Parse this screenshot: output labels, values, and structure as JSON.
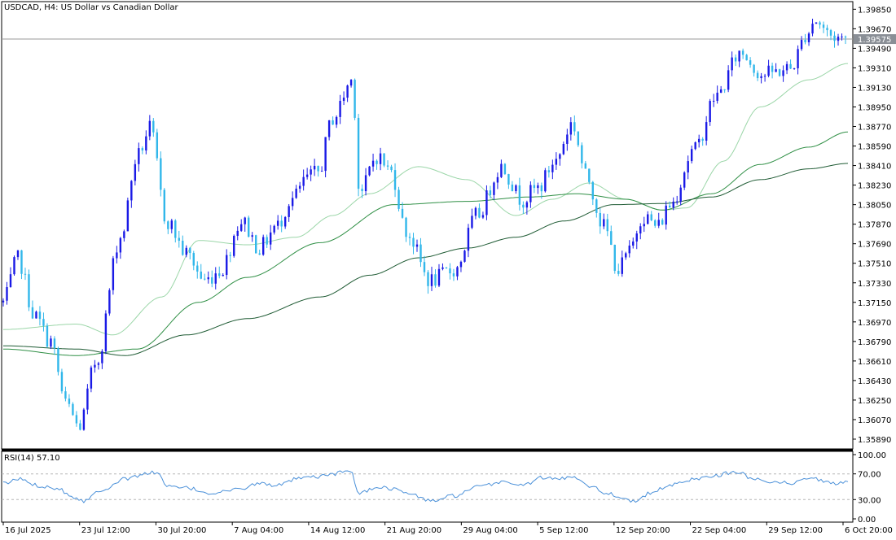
{
  "header": {
    "symbol_title": "USDCAD, H4:  US Dollar vs Canadian Dollar"
  },
  "indicator": {
    "rsi_title": "RSI(14) 57.10",
    "rsi_ticks": [
      "100.00",
      "70.00",
      "30.00",
      "0.00"
    ]
  },
  "colors": {
    "bull_candle": "#1a1ae6",
    "bear_candle": "#31b7ea",
    "ma_fast": "#9bd6a8",
    "ma_mid": "#2f8f45",
    "ma_slow": "#1f5b34",
    "rsi_line": "#4a90d9",
    "price_tag_bg": "#8a8f96"
  },
  "chart_data": [
    {
      "type": "candlestick",
      "title": "USDCAD, H4:  US Dollar vs Canadian Dollar",
      "ylim": [
        1.358,
        1.3992
      ],
      "current_price": "1.39575",
      "y_ticks": [
        "1.39850",
        "1.39670",
        "1.39490",
        "1.39310",
        "1.39130",
        "1.38950",
        "1.38770",
        "1.38590",
        "1.38410",
        "1.38230",
        "1.38050",
        "1.37870",
        "1.37690",
        "1.37510",
        "1.37330",
        "1.37150",
        "1.36970",
        "1.36790",
        "1.36610",
        "1.36430",
        "1.36250",
        "1.36070",
        "1.35890"
      ],
      "x_ticks": [
        "16 Jul 2025",
        "23 Jul 12:00",
        "30 Jul 20:00",
        "7 Aug 04:00",
        "14 Aug 12:00",
        "21 Aug 20:00",
        "29 Aug 04:00",
        "5 Sep 12:00",
        "12 Sep 20:00",
        "22 Sep 04:00",
        "29 Sep 12:00",
        "6 Oct 20:00"
      ],
      "series_close_anchors": [
        [
          0,
          1.3715
        ],
        [
          12,
          1.3755
        ],
        [
          26,
          1.3702
        ],
        [
          38,
          1.368
        ],
        [
          52,
          1.362
        ],
        [
          62,
          1.36
        ],
        [
          76,
          1.366
        ],
        [
          96,
          1.3775
        ],
        [
          110,
          1.385
        ],
        [
          120,
          1.3875
        ],
        [
          134,
          1.379
        ],
        [
          150,
          1.376
        ],
        [
          165,
          1.3735
        ],
        [
          178,
          1.3745
        ],
        [
          195,
          1.379
        ],
        [
          210,
          1.3765
        ],
        [
          224,
          1.3785
        ],
        [
          236,
          1.381
        ],
        [
          250,
          1.383
        ],
        [
          258,
          1.3835
        ],
        [
          270,
          1.3885
        ],
        [
          286,
          1.392
        ],
        [
          292,
          1.3815
        ],
        [
          306,
          1.385
        ],
        [
          318,
          1.3835
        ],
        [
          330,
          1.378
        ],
        [
          350,
          1.3735
        ],
        [
          370,
          1.3745
        ],
        [
          388,
          1.3795
        ],
        [
          408,
          1.384
        ],
        [
          425,
          1.381
        ],
        [
          438,
          1.382
        ],
        [
          452,
          1.3845
        ],
        [
          466,
          1.388
        ],
        [
          478,
          1.383
        ],
        [
          492,
          1.3785
        ],
        [
          504,
          1.3745
        ],
        [
          512,
          1.376
        ],
        [
          524,
          1.3795
        ],
        [
          536,
          1.3785
        ],
        [
          546,
          1.3805
        ],
        [
          566,
          1.3855
        ],
        [
          584,
          1.3905
        ],
        [
          604,
          1.3945
        ],
        [
          622,
          1.3925
        ],
        [
          644,
          1.393
        ],
        [
          660,
          1.3965
        ],
        [
          664,
          1.3975
        ],
        [
          680,
          1.396
        ],
        [
          692,
          1.3957
        ]
      ],
      "overlays": [
        {
          "name": "MA fast",
          "color_key": "ma_fast",
          "points": [
            [
              0,
              1.369
            ],
            [
              60,
              1.3695
            ],
            [
              90,
              1.3685
            ],
            [
              130,
              1.372
            ],
            [
              160,
              1.3772
            ],
            [
              200,
              1.3768
            ],
            [
              240,
              1.3775
            ],
            [
              270,
              1.3795
            ],
            [
              300,
              1.3815
            ],
            [
              340,
              1.384
            ],
            [
              380,
              1.3828
            ],
            [
              420,
              1.3795
            ],
            [
              450,
              1.381
            ],
            [
              480,
              1.3825
            ],
            [
              510,
              1.381
            ],
            [
              540,
              1.38
            ],
            [
              560,
              1.3802
            ],
            [
              590,
              1.3845
            ],
            [
              620,
              1.3895
            ],
            [
              660,
              1.392
            ],
            [
              692,
              1.3935
            ]
          ]
        },
        {
          "name": "MA mid",
          "color_key": "ma_mid",
          "points": [
            [
              0,
              1.3672
            ],
            [
              60,
              1.3666
            ],
            [
              110,
              1.3672
            ],
            [
              160,
              1.3715
            ],
            [
              200,
              1.3738
            ],
            [
              260,
              1.377
            ],
            [
              320,
              1.3805
            ],
            [
              380,
              1.3808
            ],
            [
              430,
              1.3812
            ],
            [
              470,
              1.3815
            ],
            [
              510,
              1.381
            ],
            [
              540,
              1.38
            ],
            [
              580,
              1.3815
            ],
            [
              620,
              1.3842
            ],
            [
              660,
              1.3858
            ],
            [
              692,
              1.3872
            ]
          ]
        },
        {
          "name": "MA slow",
          "color_key": "ma_slow",
          "points": [
            [
              0,
              1.3675
            ],
            [
              60,
              1.3672
            ],
            [
              100,
              1.3666
            ],
            [
              150,
              1.3685
            ],
            [
              200,
              1.37
            ],
            [
              260,
              1.372
            ],
            [
              300,
              1.374
            ],
            [
              340,
              1.3756
            ],
            [
              380,
              1.3765
            ],
            [
              420,
              1.3775
            ],
            [
              460,
              1.379
            ],
            [
              500,
              1.3805
            ],
            [
              540,
              1.3806
            ],
            [
              580,
              1.3812
            ],
            [
              620,
              1.3828
            ],
            [
              660,
              1.3838
            ],
            [
              692,
              1.3843
            ]
          ]
        }
      ]
    },
    {
      "type": "line",
      "title": "RSI(14) 57.10",
      "ylim": [
        0,
        100
      ],
      "levels": [
        70,
        30
      ],
      "series": [
        {
          "name": "RSI(14)",
          "anchors": [
            [
              0,
              55
            ],
            [
              14,
              62
            ],
            [
              28,
              52
            ],
            [
              44,
              48
            ],
            [
              58,
              34
            ],
            [
              66,
              28
            ],
            [
              80,
              45
            ],
            [
              100,
              62
            ],
            [
              116,
              70
            ],
            [
              126,
              73
            ],
            [
              134,
              50
            ],
            [
              150,
              48
            ],
            [
              170,
              40
            ],
            [
              190,
              45
            ],
            [
              210,
              55
            ],
            [
              226,
              52
            ],
            [
              240,
              62
            ],
            [
              256,
              65
            ],
            [
              270,
              70
            ],
            [
              284,
              75
            ],
            [
              292,
              40
            ],
            [
              308,
              50
            ],
            [
              322,
              46
            ],
            [
              334,
              38
            ],
            [
              350,
              28
            ],
            [
              370,
              36
            ],
            [
              390,
              50
            ],
            [
              410,
              58
            ],
            [
              426,
              52
            ],
            [
              440,
              64
            ],
            [
              454,
              62
            ],
            [
              468,
              66
            ],
            [
              480,
              52
            ],
            [
              494,
              40
            ],
            [
              510,
              32
            ],
            [
              518,
              26
            ],
            [
              530,
              40
            ],
            [
              546,
              52
            ],
            [
              566,
              62
            ],
            [
              584,
              68
            ],
            [
              600,
              73
            ],
            [
              616,
              62
            ],
            [
              632,
              58
            ],
            [
              646,
              55
            ],
            [
              660,
              65
            ],
            [
              680,
              55
            ],
            [
              692,
              57
            ]
          ]
        }
      ]
    }
  ]
}
